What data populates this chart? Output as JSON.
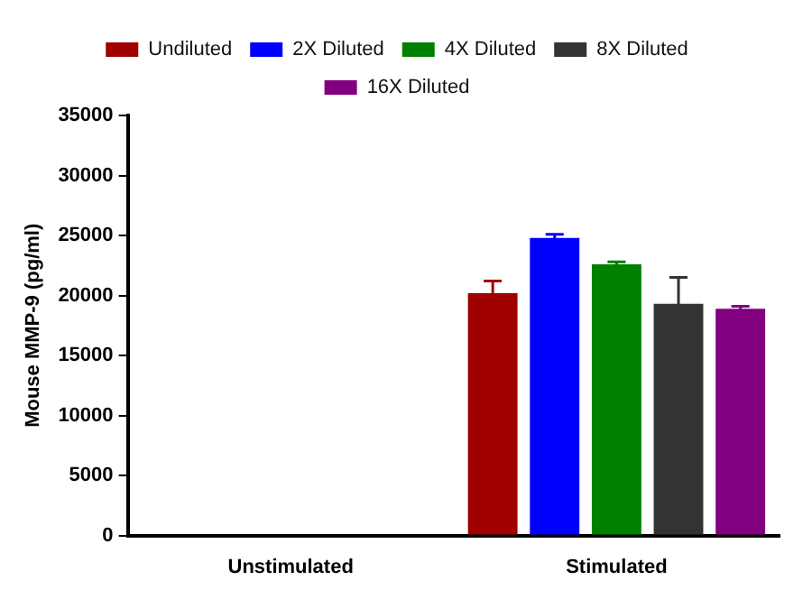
{
  "chart_data": {
    "type": "bar",
    "ylabel": "Mouse MMP-9 (pg/ml)",
    "categories": [
      "Unstimulated",
      "Stimulated"
    ],
    "series": [
      {
        "name": "Undiluted",
        "color": "#a00000",
        "values": [
          0,
          20200
        ],
        "errors": [
          null,
          1000
        ]
      },
      {
        "name": "2X Diluted",
        "color": "#0000ff",
        "values": [
          0,
          24800
        ],
        "errors": [
          null,
          300
        ]
      },
      {
        "name": "4X Diluted",
        "color": "#008000",
        "values": [
          0,
          22600
        ],
        "errors": [
          null,
          200
        ]
      },
      {
        "name": "8X Diluted",
        "color": "#333333",
        "values": [
          0,
          19300
        ],
        "errors": [
          null,
          2200
        ]
      },
      {
        "name": "16X Diluted",
        "color": "#800080",
        "values": [
          0,
          18900
        ],
        "errors": [
          null,
          200
        ]
      }
    ],
    "ylim": [
      0,
      35000
    ],
    "yticks": [
      0,
      5000,
      10000,
      15000,
      20000,
      25000,
      30000,
      35000
    ],
    "grid": false,
    "legend": "top"
  }
}
